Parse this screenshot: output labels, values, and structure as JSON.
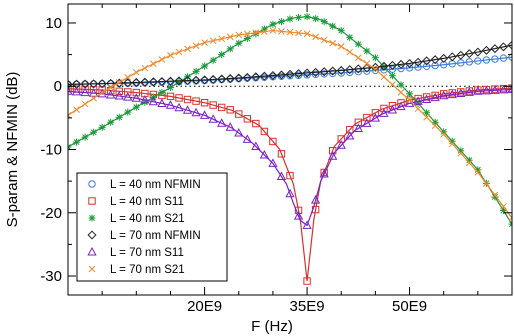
{
  "chart_data": {
    "type": "line",
    "xlabel": "F (Hz)",
    "ylabel": "S-param & NFMIN (dB)",
    "xlim": [
      0,
      65000000000
    ],
    "ylim": [
      -33,
      13
    ],
    "xticks": [
      {
        "value": 20000000000,
        "label": "20E9"
      },
      {
        "value": 35000000000,
        "label": "35E9"
      },
      {
        "value": 50000000000,
        "label": "50E9"
      }
    ],
    "yticks": [
      {
        "value": 10,
        "label": "10"
      },
      {
        "value": 0,
        "label": "0"
      },
      {
        "value": -10,
        "label": "-10"
      },
      {
        "value": -20,
        "label": "-20"
      },
      {
        "value": -30,
        "label": "-30"
      }
    ],
    "legend_position": "bottom-left",
    "series": [
      {
        "name": "L = 40 nm NFMIN",
        "marker": "circle",
        "color": "#3b7ddd",
        "x": [
          0,
          5000000000.0,
          10000000000.0,
          15000000000.0,
          20000000000.0,
          25000000000.0,
          30000000000.0,
          35000000000.0,
          40000000000.0,
          45000000000.0,
          50000000000.0,
          55000000000.0,
          60000000000.0,
          65000000000.0
        ],
        "y": [
          0.3,
          0.4,
          0.5,
          0.7,
          0.9,
          1.2,
          1.5,
          1.8,
          2.1,
          2.5,
          2.9,
          3.4,
          4.0,
          4.6
        ]
      },
      {
        "name": "L = 40 nm S11",
        "marker": "square",
        "color": "#d9312b",
        "x": [
          0,
          5000000000.0,
          10000000000.0,
          15000000000.0,
          20000000000.0,
          24000000000.0,
          28000000000.0,
          31000000000.0,
          33000000000.0,
          34000000000.0,
          35000000000.0,
          36000000000.0,
          37000000000.0,
          39000000000.0,
          42000000000.0,
          46000000000.0,
          50000000000.0,
          55000000000.0,
          60000000000.0,
          65000000000.0
        ],
        "y": [
          -0.4,
          -0.6,
          -1.0,
          -1.6,
          -2.6,
          -3.8,
          -6.2,
          -10.0,
          -15.5,
          -21.0,
          -30.8,
          -21.0,
          -15.0,
          -9.5,
          -6.0,
          -3.6,
          -2.2,
          -1.2,
          -0.6,
          -0.3
        ]
      },
      {
        "name": "L = 40 nm S21",
        "marker": "star",
        "color": "#1a9a3a",
        "x": [
          0,
          5000000000.0,
          10000000000.0,
          15000000000.0,
          20000000000.0,
          25000000000.0,
          30000000000.0,
          33000000000.0,
          35000000000.0,
          37000000000.0,
          40000000000.0,
          45000000000.0,
          50000000000.0,
          55000000000.0,
          60000000000.0,
          65000000000.0
        ],
        "y": [
          -9.6,
          -6.5,
          -3.3,
          -0.2,
          3.2,
          6.8,
          9.8,
          10.8,
          11.0,
          10.5,
          8.8,
          4.5,
          -1.2,
          -7.2,
          -13.2,
          -21.8
        ]
      },
      {
        "name": "L = 70 nm NFMIN",
        "marker": "diamond",
        "color": "#222222",
        "x": [
          0,
          5000000000.0,
          10000000000.0,
          15000000000.0,
          20000000000.0,
          25000000000.0,
          30000000000.0,
          35000000000.0,
          40000000000.0,
          45000000000.0,
          50000000000.0,
          55000000000.0,
          60000000000.0,
          65000000000.0
        ],
        "y": [
          0.3,
          0.4,
          0.6,
          0.8,
          1.0,
          1.3,
          1.7,
          2.1,
          2.5,
          3.0,
          3.6,
          4.4,
          5.4,
          6.5
        ]
      },
      {
        "name": "L = 70 nm S11",
        "marker": "triangle",
        "color": "#7a22c8",
        "x": [
          0,
          5000000000.0,
          10000000000.0,
          15000000000.0,
          20000000000.0,
          24000000000.0,
          27000000000.0,
          30000000000.0,
          32000000000.0,
          33000000000.0,
          34000000000.0,
          35000000000.0,
          36000000000.0,
          37000000000.0,
          39000000000.0,
          42000000000.0,
          46000000000.0,
          50000000000.0,
          55000000000.0,
          60000000000.0,
          65000000000.0
        ],
        "y": [
          -0.8,
          -1.2,
          -1.9,
          -3.0,
          -4.6,
          -6.6,
          -9.0,
          -12.2,
          -15.5,
          -18.5,
          -21.2,
          -22.0,
          -19.0,
          -15.0,
          -10.5,
          -7.0,
          -4.4,
          -2.7,
          -1.5,
          -0.8,
          -0.5
        ]
      },
      {
        "name": "L = 70 nm S21",
        "marker": "cross",
        "color": "#f08a2c",
        "x": [
          0,
          5000000000.0,
          10000000000.0,
          15000000000.0,
          20000000000.0,
          25000000000.0,
          30000000000.0,
          35000000000.0,
          40000000000.0,
          45000000000.0,
          50000000000.0,
          55000000000.0,
          60000000000.0,
          65000000000.0
        ],
        "y": [
          -4.6,
          -1.0,
          2.2,
          4.9,
          6.9,
          8.1,
          8.8,
          8.3,
          6.3,
          2.7,
          -2.2,
          -7.6,
          -13.6,
          -20.8
        ]
      }
    ]
  }
}
